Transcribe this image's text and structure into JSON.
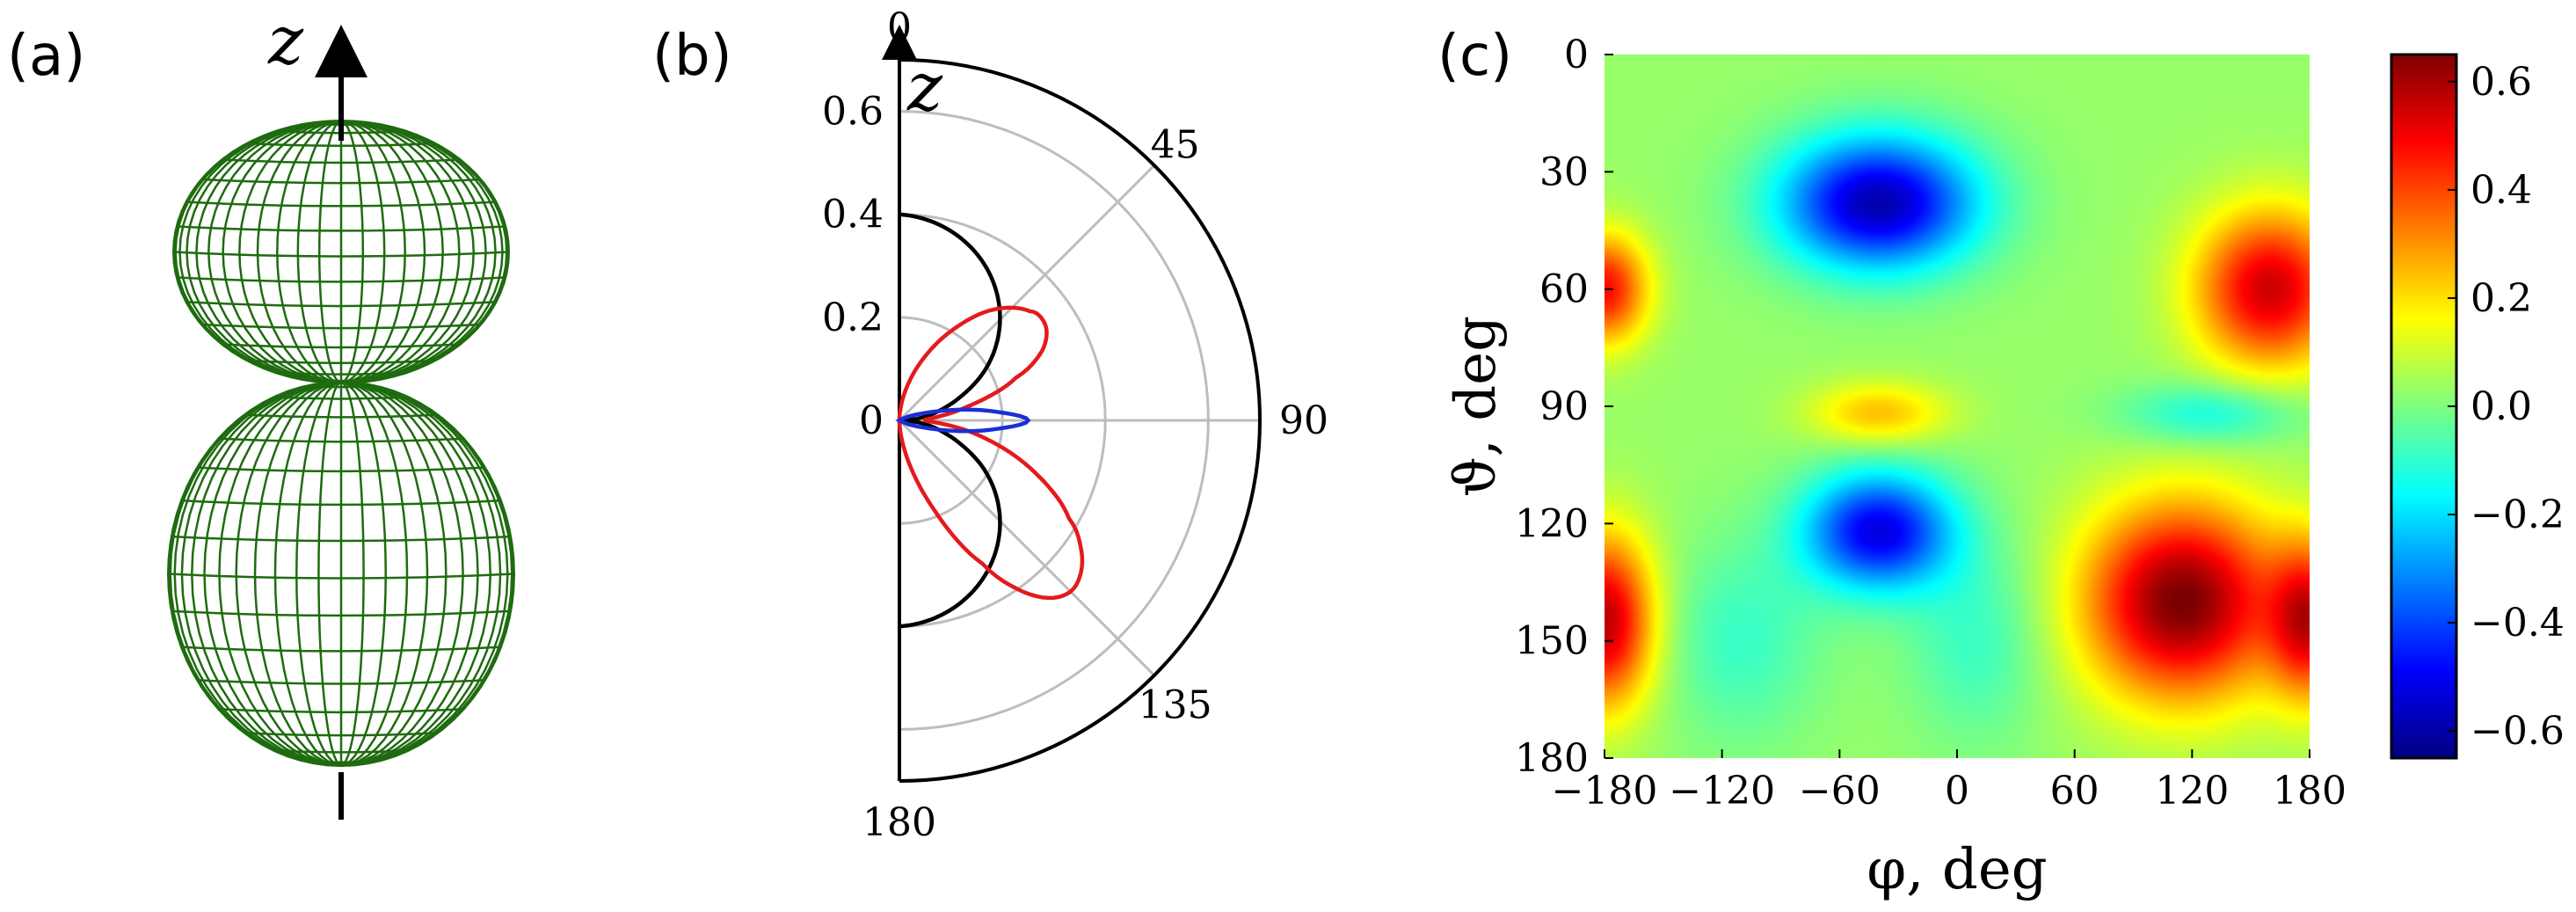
{
  "panels": {
    "a": {
      "label": "(a)",
      "axis_label": "z"
    },
    "b": {
      "label": "(b)",
      "axis_label": "z"
    },
    "c": {
      "label": "(c)"
    }
  },
  "colors": {
    "mesh": "#1f6b10",
    "curve_black": "#000000",
    "curve_red": "#e41a1c",
    "curve_blue": "#1a2fd6",
    "grid": "#bdbdbd"
  },
  "chart_data": [
    {
      "type": "surface-3d",
      "panel": "a",
      "description": "radiation pattern mesh surface, two lobes along z axis",
      "axis_label": "z"
    },
    {
      "type": "line",
      "panel": "b",
      "projection": "polar-half",
      "theta_ticks": [
        "0",
        "45",
        "90",
        "135",
        "180"
      ],
      "theta_tick_values": [
        0,
        45,
        90,
        135,
        180
      ],
      "r_ticks": [
        "0",
        "0.2",
        "0.4",
        "0.6"
      ],
      "r_tick_values": [
        0,
        0.2,
        0.4,
        0.6
      ],
      "r_max": 0.7,
      "axis_label": "z",
      "series": [
        {
          "name": "black",
          "color": "#000000",
          "theta": [
            0,
            10,
            20,
            30,
            40,
            50,
            60,
            70,
            80,
            90,
            100,
            110,
            120,
            130,
            140,
            150,
            160,
            170,
            180
          ],
          "r": [
            0.4,
            0.39,
            0.37,
            0.34,
            0.3,
            0.25,
            0.19,
            0.12,
            0.06,
            0.015,
            0.06,
            0.12,
            0.19,
            0.25,
            0.3,
            0.34,
            0.37,
            0.39,
            0.4
          ]
        },
        {
          "name": "red",
          "color": "#e41a1c",
          "theta": [
            0,
            10,
            20,
            30,
            40,
            50,
            55,
            60,
            65,
            70,
            80,
            90,
            100,
            110,
            120,
            125,
            130,
            135,
            140,
            145,
            150,
            160,
            170,
            180
          ],
          "r": [
            0,
            0.05,
            0.12,
            0.2,
            0.28,
            0.33,
            0.34,
            0.33,
            0.3,
            0.24,
            0.12,
            0.05,
            0.15,
            0.27,
            0.38,
            0.43,
            0.46,
            0.47,
            0.45,
            0.4,
            0.32,
            0.17,
            0.06,
            0
          ],
          "note": "upper lobe peaks near theta 55 (r ~0.34); lower lobe peaks near theta 135 (r ~0.47)"
        },
        {
          "name": "blue",
          "color": "#1a2fd6",
          "theta": [
            60,
            70,
            75,
            80,
            85,
            90,
            95,
            100,
            105,
            110,
            120
          ],
          "r": [
            0.0,
            0.03,
            0.06,
            0.12,
            0.19,
            0.25,
            0.19,
            0.12,
            0.06,
            0.03,
            0.0
          ]
        }
      ]
    },
    {
      "type": "heatmap",
      "panel": "c",
      "xlabel": "φ, deg",
      "ylabel": "ϑ, deg",
      "x_ticks": [
        "−180",
        "−120",
        "−60",
        "0",
        "60",
        "120",
        "180"
      ],
      "x_tick_values": [
        -180,
        -120,
        -60,
        0,
        60,
        120,
        180
      ],
      "y_ticks": [
        "0",
        "30",
        "60",
        "90",
        "120",
        "150",
        "180"
      ],
      "y_tick_values": [
        0,
        30,
        60,
        90,
        120,
        150,
        180
      ],
      "xlim": [
        -180,
        180
      ],
      "ylim": [
        0,
        180
      ],
      "colorbar": {
        "range": [
          -0.65,
          0.65
        ],
        "ticks": [
          "−0.6",
          "−0.4",
          "−0.2",
          "0.0",
          "0.2",
          "0.4",
          "0.6"
        ],
        "tick_values": [
          -0.6,
          -0.4,
          -0.2,
          0.0,
          0.2,
          0.4,
          0.6
        ],
        "colormap": "jet"
      },
      "blobs": [
        {
          "phi": -40,
          "theta": 38,
          "value": -0.62,
          "sphi": 50,
          "stheta": 17
        },
        {
          "phi": 160,
          "theta": 60,
          "value": 0.52,
          "sphi": 38,
          "stheta": 20
        },
        {
          "phi": -180,
          "theta": 60,
          "value": 0.45,
          "sphi": 22,
          "stheta": 14
        },
        {
          "phi": -40,
          "theta": 92,
          "value": 0.22,
          "sphi": 35,
          "stheta": 8
        },
        {
          "phi": 130,
          "theta": 92,
          "value": -0.18,
          "sphi": 45,
          "stheta": 8
        },
        {
          "phi": -40,
          "theta": 122,
          "value": -0.55,
          "sphi": 38,
          "stheta": 15
        },
        {
          "phi": 115,
          "theta": 140,
          "value": 0.63,
          "sphi": 50,
          "stheta": 25
        },
        {
          "phi": -180,
          "theta": 145,
          "value": 0.55,
          "sphi": 25,
          "stheta": 22
        },
        {
          "phi": 180,
          "theta": 145,
          "value": 0.45,
          "sphi": 20,
          "stheta": 20
        },
        {
          "phi": -110,
          "theta": 150,
          "value": -0.12,
          "sphi": 40,
          "stheta": 25
        },
        {
          "phi": 10,
          "theta": 150,
          "value": -0.12,
          "sphi": 35,
          "stheta": 25
        }
      ]
    }
  ]
}
